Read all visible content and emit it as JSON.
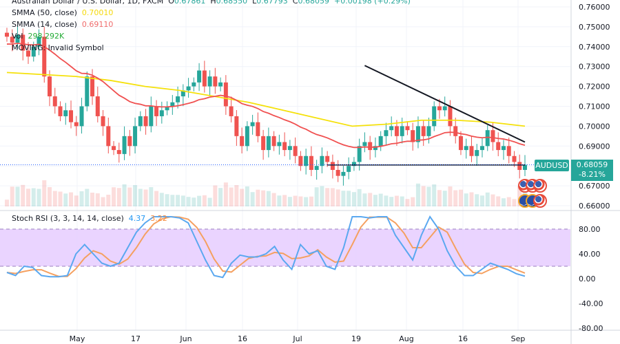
{
  "header": {
    "symbol_title": "Australian Dollar / U.S. Dollar, 1D, FXCM",
    "open_label": "O",
    "open": "0.67861",
    "high_label": "H",
    "high": "0.68550",
    "low_label": "L",
    "low": "0.67793",
    "close_label": "C",
    "close": "0.68059",
    "change": "+0.00198 (+0.29%)"
  },
  "indicators": {
    "smma50_label": "SMMA (50, close)",
    "smma50_value": "0.70010",
    "smma14_label": "SMMA (14, close)",
    "smma14_value": "0.69110",
    "vol_label": "Vol",
    "vol_value": "298.292K",
    "moving_label": "MOVING: Invalid Symbol",
    "stoch_label": "Stoch RSI (3, 3, 14, 14, close)",
    "stoch_k": "4.37",
    "stoch_d": "3.22"
  },
  "price_tag": {
    "symbol": "AUDUSD",
    "price": "0.68059",
    "change": "-8.21%"
  },
  "colors": {
    "up": "#26a69a",
    "down": "#ef5350",
    "smma50": "#f5e10a",
    "smma14": "#f05050",
    "k": "#5aa8f0",
    "d": "#f5a060",
    "stoch_band": "#e6ccff"
  },
  "chart_data": {
    "type": "candlestick",
    "price_axis": [
      "0.76000",
      "0.75000",
      "0.74000",
      "0.73000",
      "0.72000",
      "0.71000",
      "0.70000",
      "0.69000",
      "0.67000",
      "0.66000"
    ],
    "price_range": [
      0.66,
      0.76
    ],
    "time_axis": [
      "May",
      "17",
      "Jun",
      "16",
      "Jul",
      "19",
      "Aug",
      "16",
      "Sep"
    ],
    "closes": [
      0.745,
      0.742,
      0.746,
      0.738,
      0.735,
      0.74,
      0.745,
      0.725,
      0.715,
      0.71,
      0.705,
      0.708,
      0.702,
      0.7,
      0.71,
      0.725,
      0.715,
      0.705,
      0.7,
      0.69,
      0.688,
      0.686,
      0.695,
      0.69,
      0.7,
      0.705,
      0.7,
      0.71,
      0.705,
      0.708,
      0.71,
      0.712,
      0.715,
      0.718,
      0.72,
      0.722,
      0.728,
      0.72,
      0.725,
      0.72,
      0.722,
      0.71,
      0.705,
      0.695,
      0.69,
      0.7,
      0.702,
      0.695,
      0.688,
      0.695,
      0.69,
      0.692,
      0.688,
      0.69,
      0.685,
      0.68,
      0.685,
      0.678,
      0.68,
      0.685,
      0.682,
      0.678,
      0.675,
      0.677,
      0.68,
      0.682,
      0.69,
      0.692,
      0.688,
      0.69,
      0.695,
      0.698,
      0.7,
      0.695,
      0.7,
      0.698,
      0.692,
      0.7,
      0.695,
      0.7,
      0.71,
      0.708,
      0.71,
      0.7,
      0.695,
      0.688,
      0.69,
      0.685,
      0.688,
      0.69,
      0.698,
      0.692,
      0.688,
      0.69,
      0.685,
      0.682,
      0.678,
      0.68059
    ],
    "smma50": [
      0.727,
      0.726,
      0.725,
      0.723,
      0.72,
      0.718,
      0.715,
      0.712,
      0.708,
      0.704,
      0.7,
      0.701,
      0.703,
      0.703,
      0.702,
      0.7
    ],
    "stoch_axis": [
      "80.00",
      "40.00",
      "0.00",
      "-40.00",
      "-80.00"
    ],
    "stoch_range": [
      -80,
      100
    ],
    "stoch_k": [
      10,
      5,
      20,
      18,
      5,
      3,
      3,
      5,
      40,
      55,
      40,
      25,
      20,
      25,
      50,
      75,
      90,
      100,
      100,
      100,
      98,
      90,
      60,
      30,
      5,
      2,
      25,
      38,
      35,
      35,
      40,
      52,
      30,
      15,
      55,
      40,
      45,
      20,
      15,
      50,
      100,
      100,
      98,
      100,
      100,
      70,
      50,
      30,
      70,
      100,
      80,
      45,
      20,
      5,
      5,
      15,
      25,
      20,
      15,
      8,
      4
    ],
    "drawings": [
      {
        "type": "trendline",
        "from": {
          "index": 67,
          "price": 0.7305
        },
        "to": {
          "index": 97,
          "price": 0.692
        }
      },
      {
        "type": "horizontal",
        "from": {
          "index": 60,
          "price": 0.6805
        },
        "to": {
          "index": 97,
          "price": 0.6805
        }
      }
    ]
  }
}
